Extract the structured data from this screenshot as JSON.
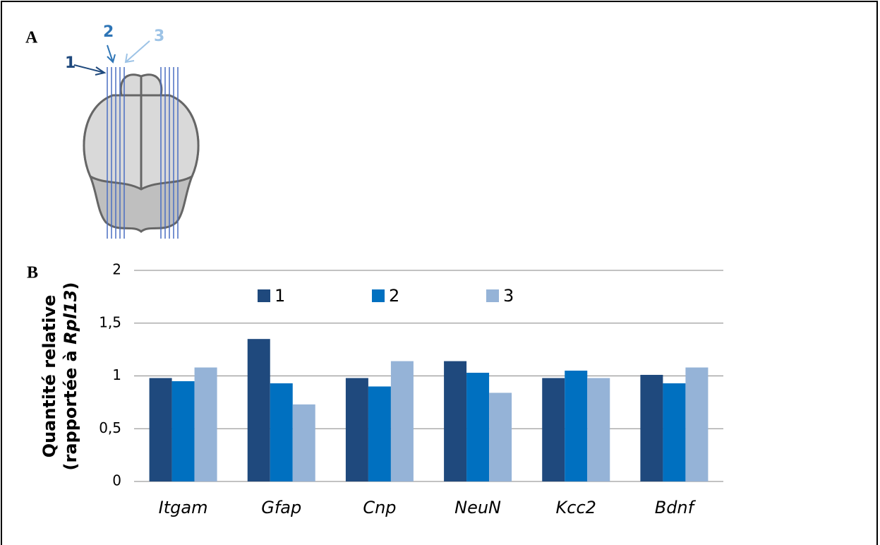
{
  "panel_a": {
    "label": "A",
    "section_labels": [
      "1",
      "2",
      "3"
    ]
  },
  "chart_data": {
    "type": "bar",
    "panel_label": "B",
    "y_label_line1": "Quantité relative",
    "y_label_line2": {
      "prefix": "(rapportée à ",
      "italic": "Rpl13",
      "suffix": ")"
    },
    "categories": [
      "Itgam",
      "Gfap",
      "Cnp",
      "NeuN",
      "Kcc2",
      "Bdnf"
    ],
    "series": [
      {
        "name": "1",
        "color": "#1f497d",
        "values": [
          0.98,
          1.35,
          0.98,
          1.14,
          0.98,
          1.01
        ]
      },
      {
        "name": "2",
        "color": "#0070c0",
        "values": [
          0.95,
          0.93,
          0.9,
          1.03,
          1.05,
          0.93
        ]
      },
      {
        "name": "3",
        "color": "#95b3d7",
        "values": [
          1.08,
          0.73,
          1.14,
          0.84,
          0.98,
          1.08
        ]
      }
    ],
    "ylim": [
      0,
      2
    ],
    "yticks": [
      0,
      {
        "value": 0.5,
        "label": "0,5"
      },
      1,
      {
        "value": 1.5,
        "label": "1,5"
      },
      2
    ],
    "grid": true,
    "legend": "top"
  }
}
